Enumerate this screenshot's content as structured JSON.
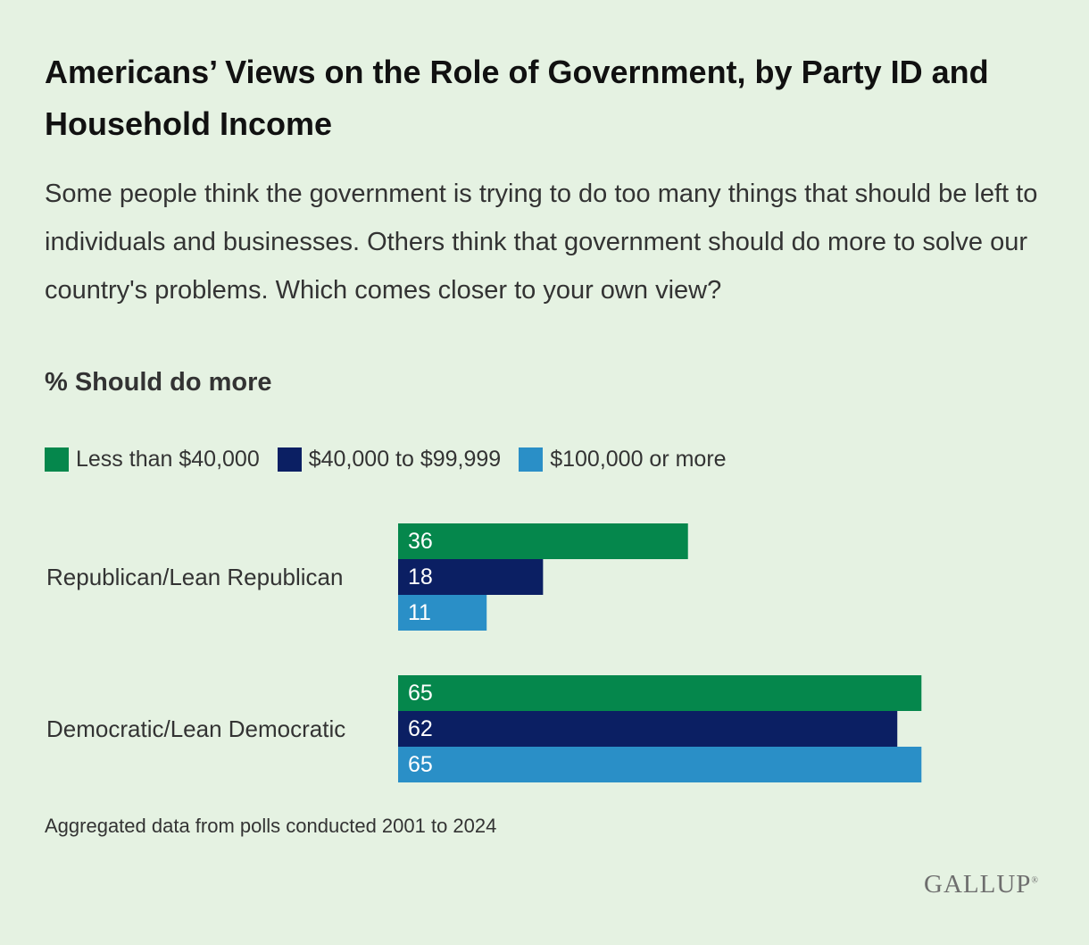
{
  "chart_data": {
    "type": "bar",
    "orientation": "horizontal",
    "title": "Americans’ Views on the Role of Government, by Party ID and Household Income",
    "subtitle": "Some people think the government is trying to do too many things that should be left to individuals and businesses. Others think that government should do more to solve our country's problems. Which comes closer to your own view?",
    "metric_label": "% Should do more",
    "categories": [
      "Republican/Lean Republican",
      "Democratic/Lean Democratic"
    ],
    "series": [
      {
        "name": "Less than $40,000",
        "color": "#05874c",
        "values": [
          36,
          65
        ]
      },
      {
        "name": "$40,000 to $99,999",
        "color": "#0b1f63",
        "values": [
          18,
          62
        ]
      },
      {
        "name": "$100,000 or more",
        "color": "#2a8fc7",
        "values": [
          11,
          65
        ]
      }
    ],
    "xlim": [
      0,
      100
    ],
    "legend_position": "top-left",
    "grid": false,
    "note": "Aggregated data from polls conducted 2001 to 2024"
  },
  "brand": {
    "logo_text": "GALLUP",
    "logo_mark": "®"
  }
}
